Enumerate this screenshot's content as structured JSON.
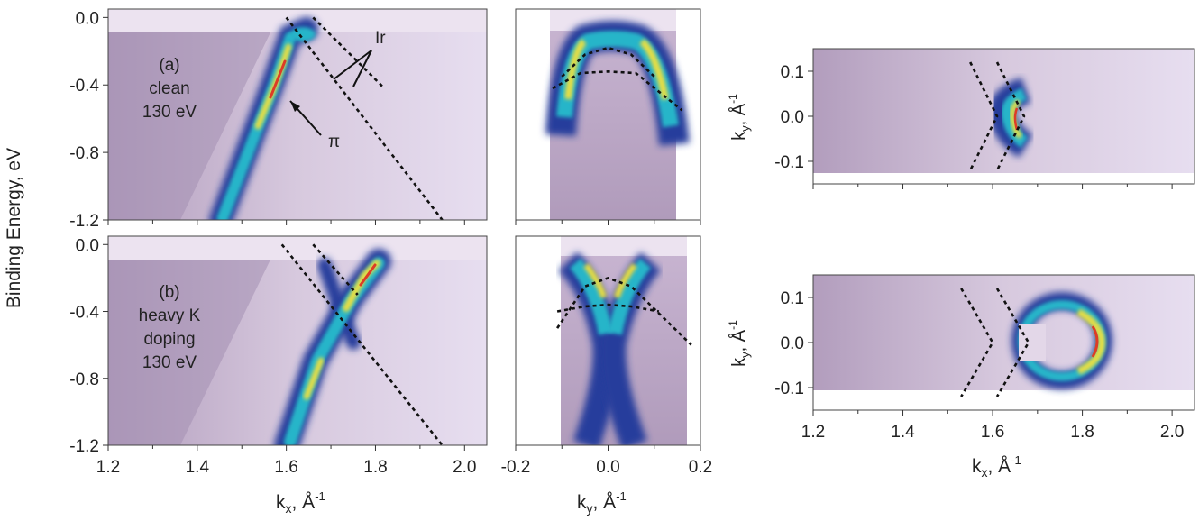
{
  "figure": {
    "ylabel": "Binding Energy, eV",
    "kx_label": "k",
    "kx_sub": "x",
    "ky_label": "k",
    "ky_sub": "y",
    "unit_label": ", Å",
    "unit_sup": "-1"
  },
  "chart_data": [
    {
      "type": "heatmap",
      "panel": "a",
      "annotation_lines": [
        "(a)",
        "clean",
        "130 eV"
      ],
      "labels": {
        "pi": "π",
        "ir": "Ir"
      },
      "xlabel": "kx, Å-1",
      "ylabel": "Binding Energy, eV",
      "xlim": [
        1.2,
        2.05
      ],
      "ylim": [
        -1.2,
        0.05
      ],
      "xticks": [
        "1.2",
        "1.4",
        "1.6",
        "1.8",
        "2.0"
      ],
      "yticks": [
        "0.0",
        "-0.4",
        "-0.8",
        "-1.2"
      ],
      "bands": [
        {
          "name": "π",
          "x": [
            1.46,
            1.54,
            1.6,
            1.64
          ],
          "y": [
            -1.2,
            -0.6,
            -0.25,
            0.0
          ]
        }
      ],
      "dashed": [
        {
          "x": [
            1.6,
            1.95
          ],
          "y": [
            0.0,
            -1.2
          ]
        },
        {
          "x": [
            1.66,
            1.82
          ],
          "y": [
            0.0,
            -0.42
          ]
        }
      ]
    },
    {
      "type": "heatmap",
      "panel": "a-ky",
      "xlabel": "ky, Å-1",
      "xlim": [
        -0.2,
        0.2
      ],
      "ylim": [
        -1.2,
        0.05
      ],
      "xticks": [
        "-0.2",
        "0.0",
        "0.2"
      ],
      "data_xrange": [
        -0.12,
        0.155
      ],
      "dashed": [
        {
          "x": [
            -0.1,
            -0.05,
            0.0,
            0.05,
            0.1
          ],
          "y": [
            -0.35,
            -0.22,
            -0.18,
            -0.22,
            -0.35
          ]
        },
        {
          "x": [
            -0.12,
            -0.06,
            0.0,
            0.06,
            0.16
          ],
          "y": [
            -0.42,
            -0.33,
            -0.32,
            -0.33,
            -0.55
          ]
        }
      ]
    },
    {
      "type": "heatmap",
      "panel": "a-fs",
      "xlabel": "kx, Å-1",
      "ylabel": "ky, Å-1",
      "xlim": [
        1.2,
        2.05
      ],
      "ylim": [
        -0.15,
        0.15
      ],
      "xticks": [
        "1.2",
        "1.4",
        "1.6",
        "1.8",
        "2.0"
      ],
      "yticks": [
        "0.1",
        "0.0",
        "-0.1"
      ],
      "dashed": [
        {
          "x": [
            1.55,
            1.61,
            1.55
          ],
          "y": [
            0.12,
            0.0,
            -0.12
          ]
        },
        {
          "x": [
            1.61,
            1.67,
            1.61
          ],
          "y": [
            0.12,
            0.0,
            -0.12
          ]
        }
      ]
    },
    {
      "type": "heatmap",
      "panel": "b",
      "annotation_lines": [
        "(b)",
        "heavy K",
        "doping",
        "130 eV"
      ],
      "xlabel": "kx, Å-1",
      "ylabel": "Binding Energy, eV",
      "xlim": [
        1.2,
        2.05
      ],
      "ylim": [
        -1.2,
        0.05
      ],
      "xticks": [
        "1.2",
        "1.4",
        "1.6",
        "1.8",
        "2.0"
      ],
      "yticks": [
        "0.0",
        "-0.4",
        "-0.8",
        "-1.2"
      ],
      "dashed": [
        {
          "x": [
            1.59,
            1.95
          ],
          "y": [
            0.0,
            -1.2
          ]
        },
        {
          "x": [
            1.66,
            1.76
          ],
          "y": [
            0.0,
            -0.3
          ]
        }
      ]
    },
    {
      "type": "heatmap",
      "panel": "b-ky",
      "xlabel": "ky, Å-1",
      "xlim": [
        -0.2,
        0.2
      ],
      "ylim": [
        -1.2,
        0.05
      ],
      "xticks": [
        "-0.2",
        "0.0",
        "0.2"
      ],
      "data_xrange": [
        -0.11,
        0.18
      ],
      "dashed": [
        {
          "x": [
            -0.11,
            -0.05,
            0.0,
            0.05,
            0.18
          ],
          "y": [
            -0.5,
            -0.25,
            -0.2,
            -0.25,
            -0.6
          ]
        },
        {
          "x": [
            -0.11,
            -0.05,
            0.0,
            0.05,
            0.11
          ],
          "y": [
            -0.4,
            -0.37,
            -0.36,
            -0.37,
            -0.4
          ]
        }
      ]
    },
    {
      "type": "heatmap",
      "panel": "b-fs",
      "xlabel": "kx, Å-1",
      "ylabel": "ky, Å-1",
      "xlim": [
        1.2,
        2.05
      ],
      "ylim": [
        -0.15,
        0.15
      ],
      "xticks": [
        "1.2",
        "1.4",
        "1.6",
        "1.8",
        "2.0"
      ],
      "yticks": [
        "0.1",
        "0.0",
        "-0.1"
      ],
      "dashed": [
        {
          "x": [
            1.53,
            1.6,
            1.53
          ],
          "y": [
            0.12,
            0.0,
            -0.12
          ]
        },
        {
          "x": [
            1.61,
            1.68,
            1.61
          ],
          "y": [
            0.12,
            0.0,
            -0.12
          ]
        }
      ]
    }
  ],
  "colors": {
    "background": "#e3d7e8",
    "band_low": "#2a3fa0",
    "band_mid": "#22b0c8",
    "band_high": "#f2e24a",
    "band_peak": "#e0402a",
    "dash": "#111111"
  }
}
